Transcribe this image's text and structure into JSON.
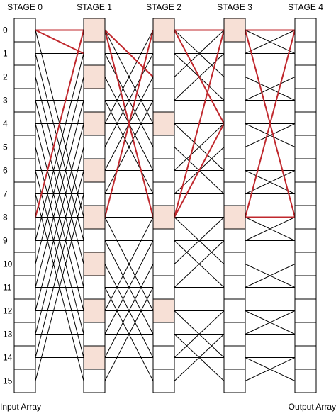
{
  "stages": [
    "STAGE 0",
    "STAGE 1",
    "STAGE 2",
    "STAGE 3",
    "STAGE 4"
  ],
  "row_labels": [
    "0",
    "1",
    "2",
    "3",
    "4",
    "5",
    "6",
    "7",
    "8",
    "9",
    "10",
    "11",
    "12",
    "13",
    "14",
    "15"
  ],
  "footer": {
    "left": "Input Array",
    "right": "Output Array"
  }
}
